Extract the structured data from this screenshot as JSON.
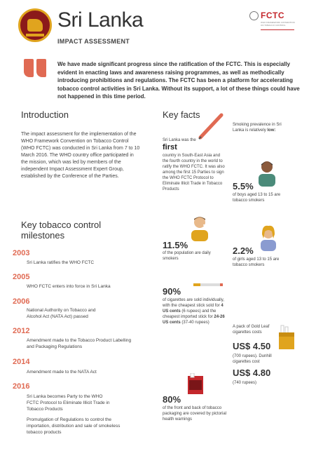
{
  "header": {
    "title": "Sri Lanka",
    "subtitle": "IMPACT ASSESSMENT",
    "fctc_logo": "FCTC",
    "fctc_tiny": "WHO FRAMEWORK CONVENTION ON TOBACCO CONTROL"
  },
  "intro_quote": "We have made significant progress since the ratification of the FCTC. This is especially evident in enacting laws and awareness raising programmes, as well as methodically introducing prohibitions and regulations. The FCTC has been a platform for accelerating tobacco control activities in Sri Lanka. Without its support, a lot of these things could have not happened in this time period.",
  "introduction": {
    "heading": "Introduction",
    "text": "The impact assessment for the implementation of the WHO Framework Convention on Tobacco Control (WHO FCTC) was conducted in Sri Lanka from 7 to 10 March 2016. The WHO country office participated in the mission, which was led by members of the independent Impact Assessment Expert Group, established by the Conference of the Parties."
  },
  "milestones": {
    "heading_line1": "Key tobacco control",
    "heading_line2": "milestones",
    "items": [
      {
        "year": "2003",
        "text": "Sri Lanka ratifies the WHO FCTC"
      },
      {
        "year": "2005",
        "text": "WHO FCTC enters into force in Sri Lanka"
      },
      {
        "year": "2006",
        "text": "National Authority on Tobacco and Alcohol Act (NATA Act) passed"
      },
      {
        "year": "2012",
        "text": "Amendment made to the Tobacco Product Labelling and Packaging Regulations"
      },
      {
        "year": "2014",
        "text": "Amendment made to the NATA Act"
      },
      {
        "year": "2016",
        "text": "Sri Lanka becomes Party to the WHO FCTC Protocol to Eliminate Illicit Trade in Tobacco Products"
      },
      {
        "year": "",
        "text": "Promulgation of Regulations to control the importation, distribution and sale of smokeless tobacco products"
      }
    ]
  },
  "key_facts": {
    "heading": "Key facts",
    "first_pre": "Sri Lanka was the",
    "first_word": "first",
    "first_post": "country in South-East Asia and the fourth country in the world to ratify the WHO FCTC. It was also among the first 15 Parties to sign the WHO FCTC Protocol to Eliminate Illicit Trade in Tobacco Products",
    "prevalence_pre": "Smoking prevalence in Sri Lanka is relatively",
    "prevalence_word": "low",
    "boys_pct": "5.5%",
    "boys_text": "of boys aged 13 to 15 are tobacco smokers",
    "pop_pct": "11.5%",
    "pop_text": "of the population are daily smokers",
    "girls_pct": "2.2%",
    "girls_text": "of girls aged 13 to 15 are tobacco smokers",
    "single_pct": "90%",
    "single_text_a": "of cigarettes are sold individually, with the cheapest stick sold for",
    "single_bold_a": "4 US cents",
    "single_text_b": "(6 rupees) and the cheapest imported stick for",
    "single_bold_b": "24-26 US cents",
    "single_text_c": "(37-40 rupees)",
    "price_intro": "A pack of Gold Leaf cigarettes costs",
    "price1": "US$ 4.50",
    "price1_sub": "(700 rupees). Dunhill cigarettes cost",
    "price2": "US$ 4.80",
    "price2_sub": "(740 rupees)",
    "warning_pct": "80%",
    "warning_text": "of the front and back of tobacco packaging are covered by pictorial health warnings"
  },
  "colors": {
    "accent": "#e06a53",
    "brand_red": "#c4272c",
    "gold": "#e0a41e"
  }
}
